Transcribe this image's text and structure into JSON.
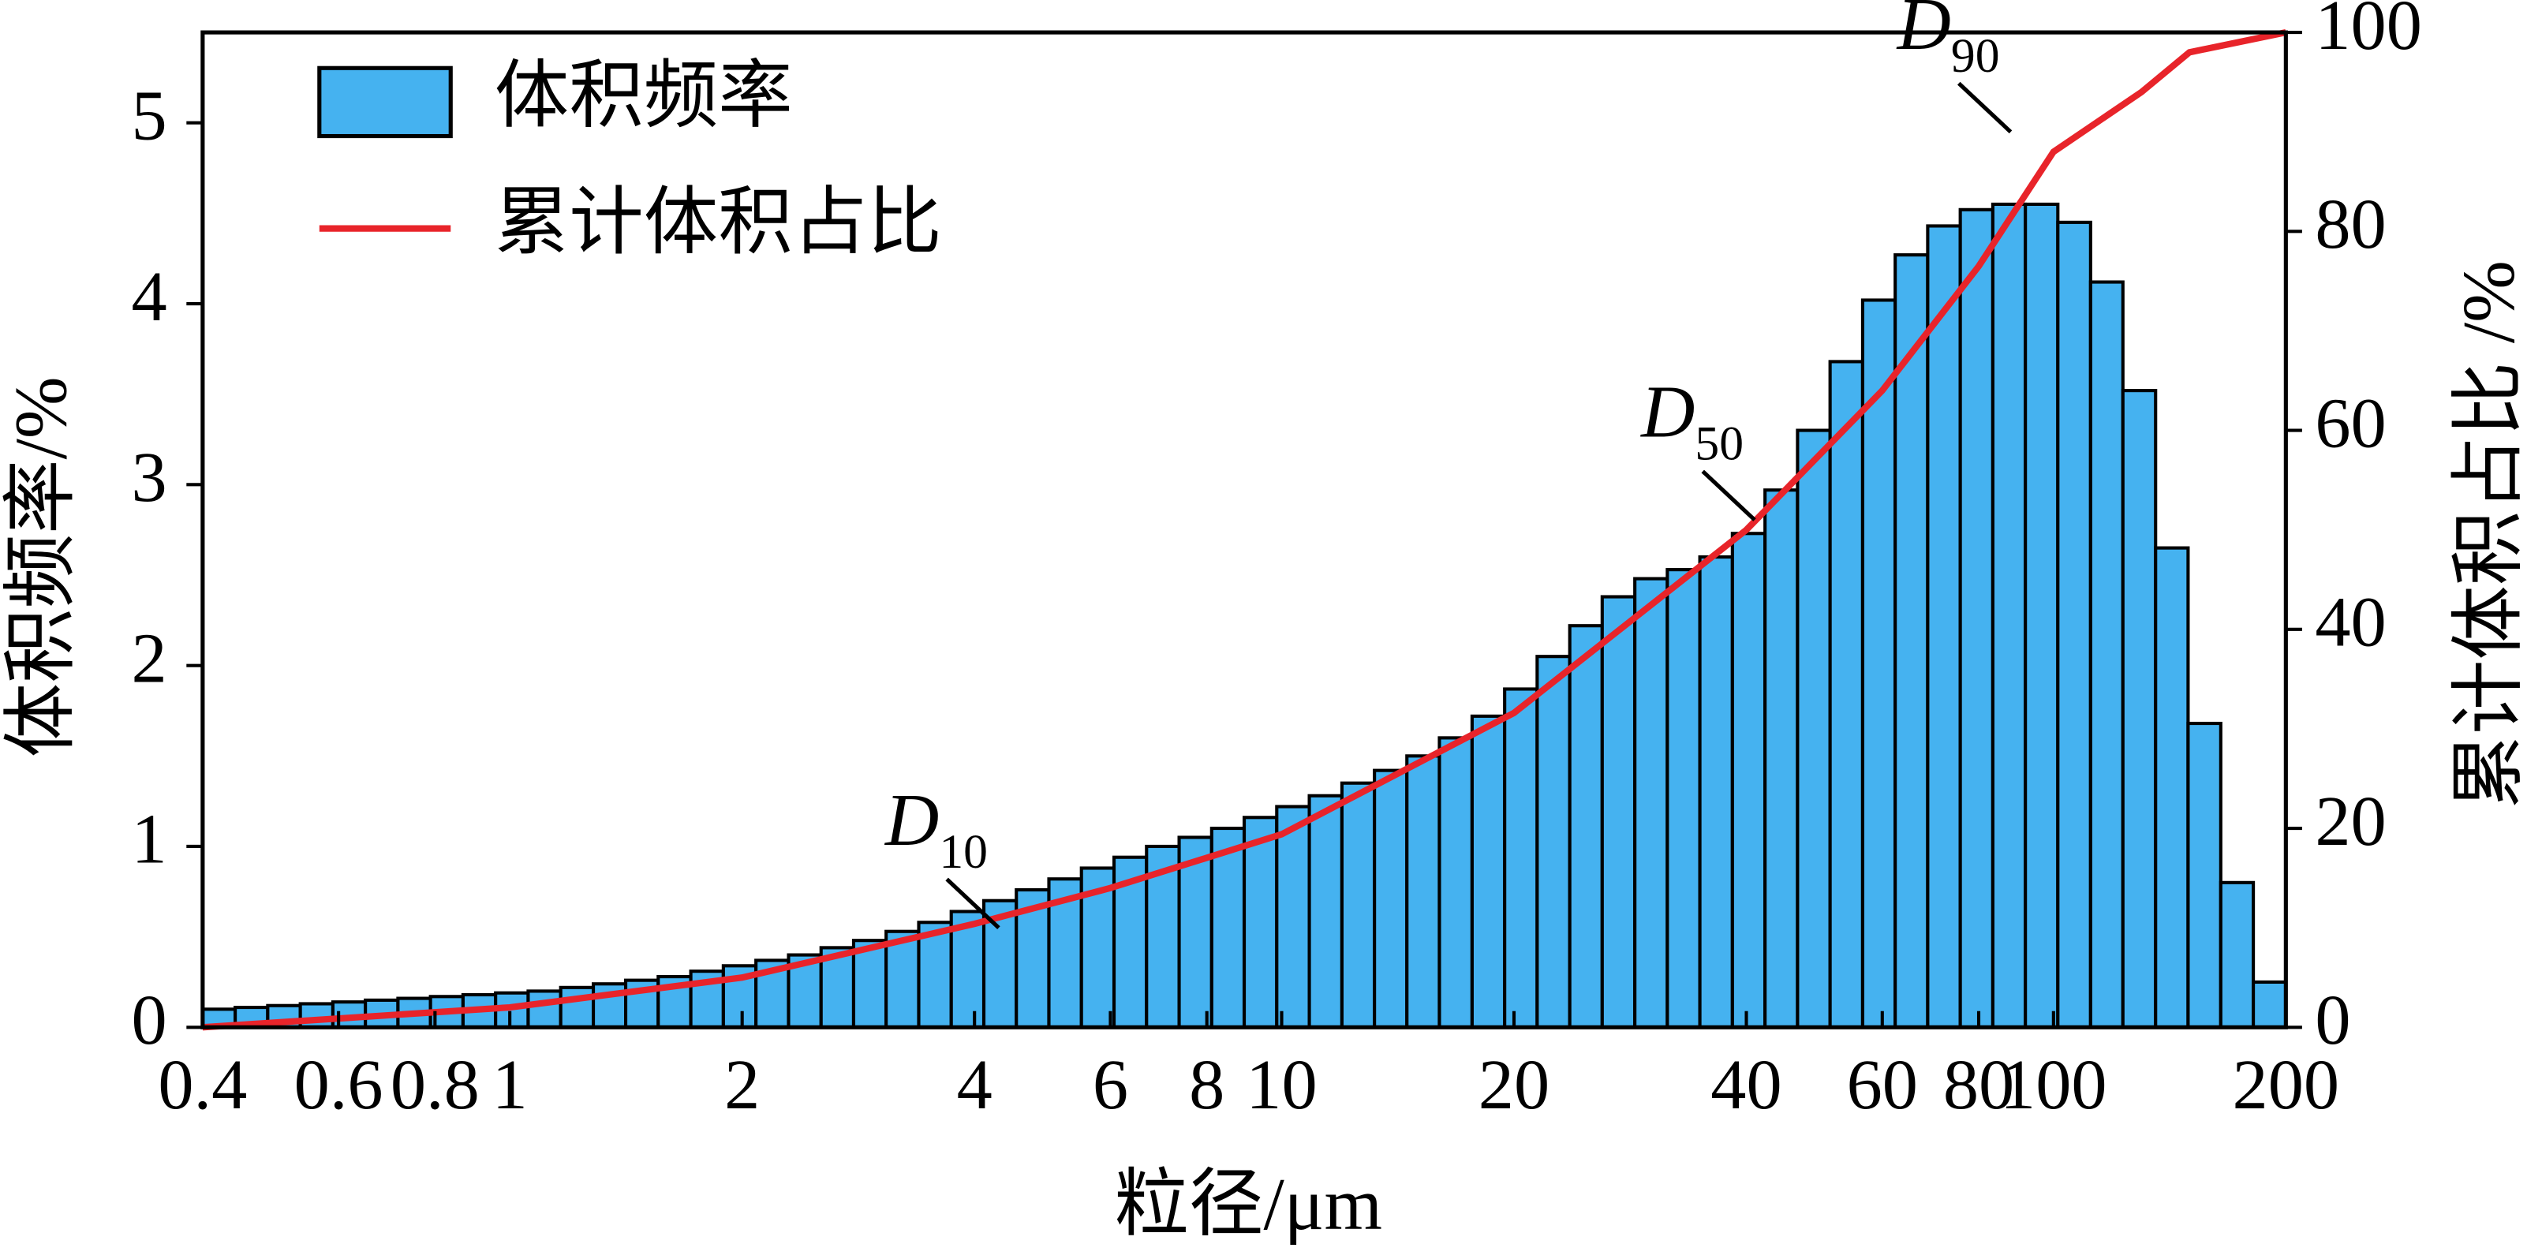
{
  "chart_data": {
    "type": "histogram",
    "xlabel": "粒径/μm",
    "ylabel": "体积频率/%",
    "y2label": "累计体积占比 /%",
    "xscale": "log",
    "xlim": [
      0.4,
      200
    ],
    "xticks": [
      0.4,
      0.6,
      0.8,
      1,
      2,
      4,
      6,
      8,
      10,
      20,
      40,
      60,
      80,
      100,
      200
    ],
    "ylim": [
      0,
      5.5
    ],
    "yticks": [
      0,
      1,
      2,
      3,
      4,
      5
    ],
    "y2lim": [
      0,
      100
    ],
    "y2ticks": [
      0,
      20,
      40,
      60,
      80,
      100
    ],
    "legend": "upper left",
    "bins": [
      0.4,
      0.4408,
      0.4857,
      0.5353,
      0.5899,
      0.65,
      0.7163,
      0.7893,
      0.8698,
      0.9585,
      1.0563,
      1.164,
      1.283,
      1.413,
      1.557,
      1.716,
      1.891,
      2.084,
      2.297,
      2.531,
      2.789,
      3.073,
      3.387,
      3.732,
      4.113,
      4.532,
      4.994,
      5.503,
      6.065,
      6.683,
      7.365,
      8.116,
      8.943,
      9.855,
      10.86,
      11.97,
      13.19,
      14.53,
      16.01,
      17.65,
      19.45,
      21.43,
      23.62,
      26.02,
      28.68,
      31.6,
      34.82,
      38.37,
      42.29,
      46.6,
      51.35,
      56.59,
      62.36,
      68.71,
      75.72,
      83.44,
      91.95,
      101.3,
      111.7,
      123,
      135.6,
      149.4,
      164.7,
      181.5,
      200
    ],
    "series": [
      {
        "name": "体积频率",
        "color": "#45b2f0",
        "values": [
          0.1,
          0.11,
          0.12,
          0.13,
          0.14,
          0.15,
          0.16,
          0.17,
          0.18,
          0.19,
          0.2,
          0.22,
          0.24,
          0.26,
          0.28,
          0.31,
          0.34,
          0.37,
          0.4,
          0.44,
          0.48,
          0.53,
          0.58,
          0.64,
          0.7,
          0.76,
          0.82,
          0.88,
          0.94,
          1.0,
          1.05,
          1.1,
          1.16,
          1.22,
          1.28,
          1.35,
          1.42,
          1.5,
          1.6,
          1.72,
          1.87,
          2.05,
          2.22,
          2.38,
          2.48,
          2.53,
          2.6,
          2.73,
          2.97,
          3.3,
          3.68,
          4.02,
          4.27,
          4.43,
          4.52,
          4.55,
          4.55,
          4.45,
          4.12,
          3.52,
          2.65,
          1.68,
          0.8,
          0.25
        ]
      },
      {
        "name": "累计体积占比",
        "type": "line",
        "axis": "y2",
        "color": "#e8242a",
        "x": [
          0.4,
          1,
          2,
          4,
          6,
          10,
          20,
          40,
          60,
          80,
          100,
          130,
          150,
          200
        ],
        "values": [
          0,
          2,
          5,
          10.4,
          14,
          19.4,
          31.6,
          50,
          64,
          76.5,
          88,
          94,
          98,
          100
        ]
      }
    ],
    "annotations": [
      {
        "text": "D",
        "sub": "10",
        "x": 4.3,
        "y2": 10
      },
      {
        "text": "D",
        "sub": "50",
        "x": 41,
        "y2": 51
      },
      {
        "text": "D",
        "sub": "90",
        "x": 88,
        "y2": 90
      }
    ]
  }
}
